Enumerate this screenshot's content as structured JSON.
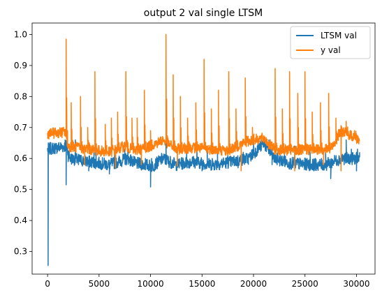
{
  "chart_data": {
    "type": "line",
    "title": "output 2 val single LTSM",
    "xlabel": "",
    "ylabel": "",
    "xlim": [
      -1500,
      31800
    ],
    "ylim": [
      0.227,
      1.037
    ],
    "x_ticks": [
      0,
      5000,
      10000,
      15000,
      20000,
      25000,
      30000
    ],
    "y_ticks": [
      0.3,
      0.4,
      0.5,
      0.6,
      0.7,
      0.8,
      0.9,
      1.0
    ],
    "x_tick_labels": [
      "0",
      "5000",
      "10000",
      "15000",
      "20000",
      "25000",
      "30000"
    ],
    "y_tick_labels": [
      "0.3",
      "0.4",
      "0.5",
      "0.6",
      "0.7",
      "0.8",
      "0.9",
      "1.0"
    ],
    "grid": false,
    "legend_position": "top-right",
    "series": [
      {
        "name": "LTSM val",
        "color": "#1f77b4",
        "base_segments": [
          [
            0,
            0.63
          ],
          [
            1800,
            0.64
          ],
          [
            2200,
            0.6
          ],
          [
            4000,
            0.59
          ],
          [
            6000,
            0.58
          ],
          [
            7800,
            0.6
          ],
          [
            8500,
            0.585
          ],
          [
            10200,
            0.575
          ],
          [
            11200,
            0.6
          ],
          [
            12500,
            0.58
          ],
          [
            14000,
            0.59
          ],
          [
            16000,
            0.58
          ],
          [
            18000,
            0.59
          ],
          [
            19500,
            0.6
          ],
          [
            21000,
            0.65
          ],
          [
            22000,
            0.6
          ],
          [
            23500,
            0.585
          ],
          [
            25500,
            0.58
          ],
          [
            27000,
            0.58
          ],
          [
            28500,
            0.6
          ],
          [
            30200,
            0.6
          ]
        ],
        "points": [
          [
            0,
            0.63
          ],
          [
            50,
            0.255
          ],
          [
            120,
            0.62
          ],
          [
            300,
            0.635
          ],
          [
            800,
            0.63
          ],
          [
            1500,
            0.64
          ],
          [
            1700,
            0.66
          ],
          [
            1800,
            0.515
          ],
          [
            1900,
            0.67
          ],
          [
            2000,
            0.59
          ],
          [
            2500,
            0.6
          ],
          [
            2700,
            0.66
          ],
          [
            3000,
            0.58
          ],
          [
            3500,
            0.6
          ],
          [
            4000,
            0.56
          ],
          [
            4500,
            0.62
          ],
          [
            4700,
            0.64
          ],
          [
            5000,
            0.58
          ],
          [
            6000,
            0.55
          ],
          [
            6500,
            0.62
          ],
          [
            7000,
            0.6
          ],
          [
            7500,
            0.63
          ],
          [
            7800,
            0.64
          ],
          [
            8000,
            0.6
          ],
          [
            8500,
            0.58
          ],
          [
            9500,
            0.6
          ],
          [
            10000,
            0.508
          ],
          [
            10100,
            0.6
          ],
          [
            10500,
            0.575
          ],
          [
            11000,
            0.6
          ],
          [
            11500,
            0.66
          ],
          [
            12000,
            0.58
          ],
          [
            13000,
            0.6
          ],
          [
            13500,
            0.64
          ],
          [
            14000,
            0.58
          ],
          [
            14500,
            0.64
          ],
          [
            15000,
            0.56
          ],
          [
            15500,
            0.64
          ],
          [
            16000,
            0.6
          ],
          [
            16500,
            0.62
          ],
          [
            17000,
            0.59
          ],
          [
            17500,
            0.62
          ],
          [
            18000,
            0.6
          ],
          [
            18500,
            0.57
          ],
          [
            19000,
            0.62
          ],
          [
            19500,
            0.6
          ],
          [
            20000,
            0.66
          ],
          [
            20500,
            0.64
          ],
          [
            21000,
            0.67
          ],
          [
            21500,
            0.66
          ],
          [
            21800,
            0.58
          ],
          [
            22500,
            0.6
          ],
          [
            23000,
            0.62
          ],
          [
            23500,
            0.57
          ],
          [
            24000,
            0.64
          ],
          [
            24500,
            0.6
          ],
          [
            25000,
            0.58
          ],
          [
            25500,
            0.62
          ],
          [
            26000,
            0.6
          ],
          [
            26500,
            0.58
          ],
          [
            27000,
            0.62
          ],
          [
            27500,
            0.535
          ],
          [
            28000,
            0.6
          ],
          [
            28500,
            0.58
          ],
          [
            29000,
            0.66
          ],
          [
            29500,
            0.63
          ],
          [
            29800,
            0.61
          ],
          [
            30000,
            0.56
          ],
          [
            30100,
            0.63
          ],
          [
            30300,
            0.62
          ]
        ]
      },
      {
        "name": "y val",
        "color": "#ff7f0e",
        "base_segments": [
          [
            0,
            0.68
          ],
          [
            1700,
            0.685
          ],
          [
            2000,
            0.64
          ],
          [
            4000,
            0.63
          ],
          [
            6000,
            0.62
          ],
          [
            7500,
            0.64
          ],
          [
            8500,
            0.625
          ],
          [
            10000,
            0.64
          ],
          [
            11200,
            0.66
          ],
          [
            12500,
            0.63
          ],
          [
            14000,
            0.635
          ],
          [
            16000,
            0.63
          ],
          [
            17500,
            0.625
          ],
          [
            19000,
            0.65
          ],
          [
            20000,
            0.66
          ],
          [
            21000,
            0.665
          ],
          [
            22000,
            0.63
          ],
          [
            24000,
            0.625
          ],
          [
            26000,
            0.63
          ],
          [
            27500,
            0.63
          ],
          [
            28500,
            0.69
          ],
          [
            30300,
            0.66
          ]
        ],
        "spikes": [
          [
            1800,
            0.985
          ],
          [
            2300,
            0.78
          ],
          [
            3200,
            0.8
          ],
          [
            3900,
            0.7
          ],
          [
            4600,
            0.88
          ],
          [
            5600,
            0.71
          ],
          [
            6200,
            0.73
          ],
          [
            6800,
            0.75
          ],
          [
            7600,
            0.88
          ],
          [
            8200,
            0.73
          ],
          [
            8700,
            0.73
          ],
          [
            9400,
            0.82
          ],
          [
            10000,
            0.69
          ],
          [
            11500,
            1.0
          ],
          [
            12200,
            0.87
          ],
          [
            12900,
            0.8
          ],
          [
            13600,
            0.73
          ],
          [
            14400,
            0.78
          ],
          [
            15200,
            0.92
          ],
          [
            15900,
            0.76
          ],
          [
            16600,
            0.82
          ],
          [
            17600,
            0.88
          ],
          [
            18300,
            0.76
          ],
          [
            19200,
            0.86
          ],
          [
            19900,
            0.7
          ],
          [
            22100,
            0.89
          ],
          [
            22800,
            0.76
          ],
          [
            23500,
            0.88
          ],
          [
            24300,
            0.81
          ],
          [
            25000,
            0.88
          ],
          [
            25700,
            0.75
          ],
          [
            26500,
            0.78
          ],
          [
            27300,
            0.81
          ],
          [
            28000,
            0.73
          ],
          [
            29000,
            0.72
          ],
          [
            29800,
            0.69
          ]
        ],
        "dips": [
          [
            3600,
            0.58
          ],
          [
            6600,
            0.57
          ],
          [
            9100,
            0.58
          ],
          [
            12600,
            0.575
          ],
          [
            18800,
            0.56
          ],
          [
            24000,
            0.56
          ],
          [
            26800,
            0.58
          ],
          [
            28500,
            0.56
          ]
        ]
      }
    ]
  }
}
